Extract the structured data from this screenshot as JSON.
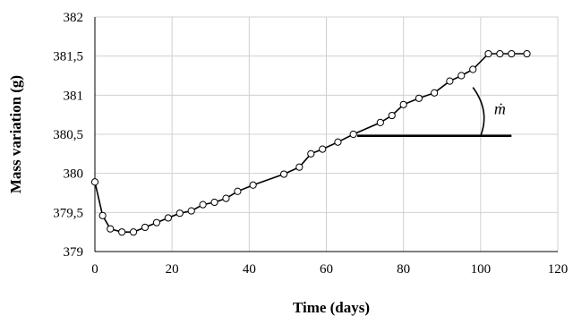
{
  "chart_data": {
    "type": "scatter",
    "xlabel": "Time (days)",
    "ylabel": "Mass variation (g)",
    "xlim": [
      0,
      120
    ],
    "ylim": [
      379,
      382
    ],
    "x_ticks": [
      "0",
      "20",
      "40",
      "60",
      "80",
      "100",
      "120"
    ],
    "y_ticks": [
      "379",
      "379,5",
      "380",
      "380,5",
      "381",
      "381,5",
      "382"
    ],
    "grid": true,
    "series": [
      {
        "x": [
          0,
          2,
          4,
          7,
          10,
          13,
          16,
          19,
          22,
          25,
          28,
          31,
          34,
          37,
          41,
          49,
          53,
          56,
          59,
          63,
          67,
          74,
          77,
          80,
          84,
          88,
          92,
          95,
          98,
          102,
          105,
          108,
          112
        ],
        "y": [
          379.89,
          379.46,
          379.29,
          379.25,
          379.25,
          379.31,
          379.37,
          379.43,
          379.49,
          379.52,
          379.6,
          379.63,
          379.68,
          379.77,
          379.85,
          379.99,
          380.08,
          380.25,
          380.31,
          380.4,
          380.5,
          380.65,
          380.74,
          380.88,
          380.96,
          381.03,
          381.18,
          381.25,
          381.33,
          381.53,
          381.53,
          381.53,
          381.53
        ]
      }
    ],
    "annotations": [
      {
        "text": "ṁ",
        "type": "slope-angle"
      }
    ]
  }
}
